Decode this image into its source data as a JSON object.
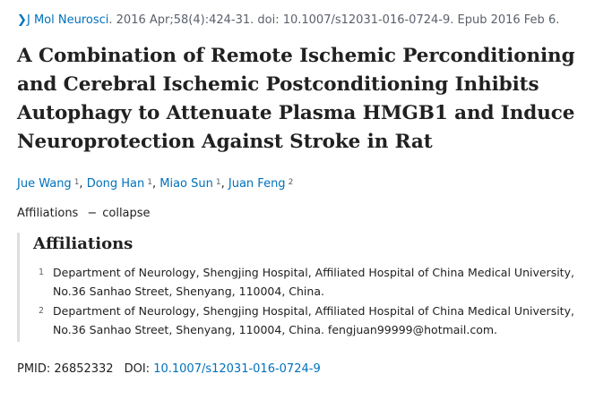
{
  "citation": {
    "journal": "J Mol Neurosci",
    "details": ". 2016 Apr;58(4):424-31. doi: 10.1007/s12031-016-0724-9. Epub 2016 Feb 6."
  },
  "title": {
    "lines": [
      "A Combination of Remote Ischemic Perconditioning",
      "and Cerebral Ischemic Postconditioning Inhibits",
      "Autophagy to Attenuate Plasma HMGB1 and Induce",
      "Neuroprotection Against Stroke in Rat"
    ]
  },
  "authors": [
    {
      "name": "Jue Wang",
      "aff": "1"
    },
    {
      "name": "Dong Han",
      "aff": "1"
    },
    {
      "name": "Miao Sun",
      "aff": "1"
    },
    {
      "name": "Juan Feng",
      "aff": "2"
    }
  ],
  "affiliations_toggle": {
    "label": "Affiliations",
    "dash": "−",
    "action": "collapse"
  },
  "affiliations": {
    "heading": "Affiliations",
    "items": [
      {
        "num": "1",
        "lines": [
          "Department of Neurology, Shengjing Hospital, Affiliated Hospital of China Medical University,",
          "No.36 Sanhao Street, Shenyang, 110004, China."
        ]
      },
      {
        "num": "2",
        "lines": [
          "Department of Neurology, Shengjing Hospital, Affiliated Hospital of China Medical University,",
          "No.36 Sanhao Street, Shenyang, 110004, China. fengjuan99999@hotmail.com."
        ]
      }
    ]
  },
  "identifiers": {
    "pmid_label": "PMID: 26852332",
    "doi_label": "DOI:",
    "doi_value": "10.1007/s12031-016-0724-9"
  },
  "colors": {
    "link": "#0071bc",
    "text": "#212121",
    "muted": "#5b616b",
    "rule": "#dcdee0"
  },
  "icons": {
    "citation_chevron": "chevron-right-icon"
  }
}
